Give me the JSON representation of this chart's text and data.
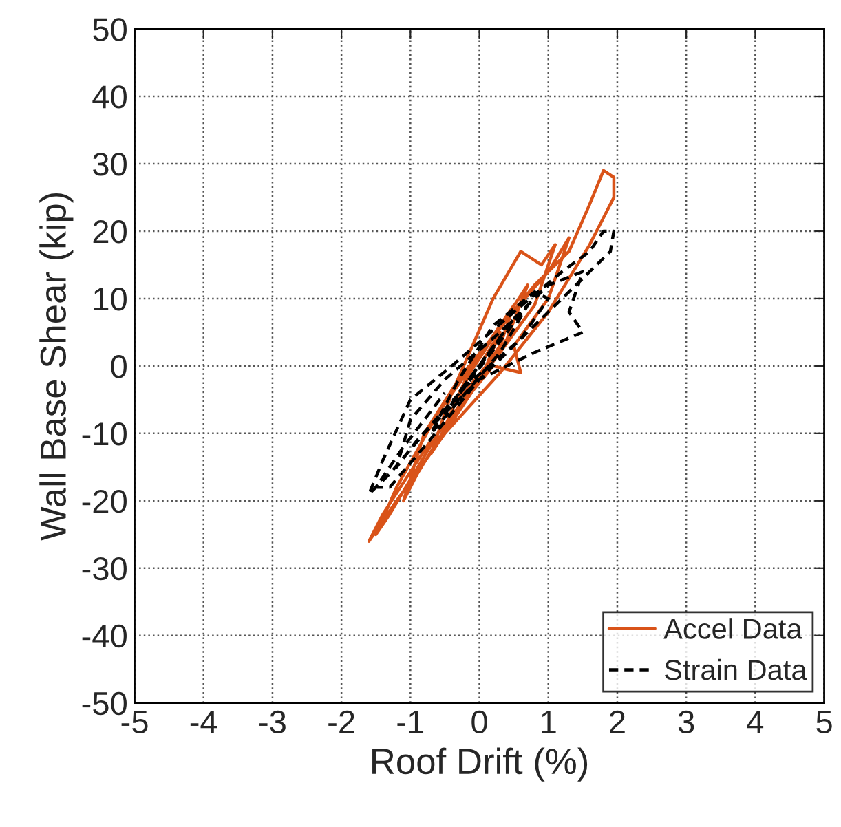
{
  "chart_data": {
    "type": "line",
    "xlabel": "Roof Drift (%)",
    "ylabel": "Wall Base Shear (kip)",
    "xlim": [
      -5,
      5
    ],
    "xticks": [
      -5,
      -4,
      -3,
      -2,
      -1,
      0,
      1,
      2,
      3,
      4,
      5
    ],
    "ylim": [
      -50,
      50
    ],
    "yticks": [
      -50,
      -40,
      -30,
      -20,
      -10,
      0,
      10,
      20,
      30,
      40,
      50
    ],
    "grid": true,
    "legend": "bottom right",
    "series": [
      {
        "name": "Accel Data",
        "color": "#d95319",
        "line_style": "solid",
        "x": [
          0,
          0.3,
          0.1,
          -0.3,
          -0.1,
          0.5,
          0.3,
          -0.5,
          -0.2,
          0.7,
          0.4,
          -0.7,
          -0.4,
          0.2,
          0.6,
          0.9,
          1.1,
          0.8,
          0.3,
          -0.3,
          -0.9,
          -1.1,
          -0.8,
          -0.3,
          0.4,
          1.0,
          1.3,
          1.0,
          0.5,
          0.6,
          0.2,
          -0.6,
          -1.3,
          -1.5,
          -1.2,
          -0.6,
          0.1,
          0.8,
          1.3,
          1.6,
          1.8,
          1.95,
          1.95,
          1.6,
          1.0,
          0.3,
          -0.5,
          -1.2,
          -1.6,
          -1.4,
          -0.7
        ],
        "values": [
          0,
          5,
          0,
          -5,
          0,
          9,
          3,
          -9,
          -2,
          12,
          4,
          -13,
          -4,
          10,
          17,
          15,
          18,
          9,
          2,
          -6,
          -16,
          -20,
          -10,
          -2,
          7,
          14,
          19,
          10,
          3,
          -1,
          0,
          -10,
          -22,
          -25,
          -18,
          -7,
          3,
          12,
          17,
          24,
          29,
          28,
          25,
          18,
          8,
          -1,
          -10,
          -20,
          -26,
          -22,
          -11
        ]
      },
      {
        "name": "Strain Data",
        "color": "#000000",
        "line_style": "dashed",
        "x": [
          0,
          0.3,
          -0.3,
          0.5,
          -0.5,
          0.7,
          0.3,
          -0.7,
          -0.3,
          0.2,
          0.8,
          1.0,
          0.6,
          -0.2,
          -0.9,
          -1.2,
          -1.0,
          -0.5,
          0.3,
          1.0,
          1.5,
          1.3,
          1.5,
          0.8,
          0,
          -0.8,
          -1.3,
          -1.6,
          -1.4,
          -1.0,
          -0.4,
          0.5,
          1.2,
          1.6,
          1.8,
          1.95,
          1.9,
          1.5,
          0.8,
          0,
          -0.8,
          -1.3,
          -1.5,
          -1.1,
          -0.5
        ],
        "values": [
          0,
          4,
          -4,
          7,
          -7,
          9,
          2,
          -10,
          -2,
          6,
          11,
          10,
          4,
          -3,
          -11,
          -15,
          -8,
          -2,
          5,
          12,
          14,
          8,
          5,
          2,
          -2,
          -10,
          -16,
          -19,
          -14,
          -5,
          0,
          8,
          14,
          17,
          20,
          20,
          17,
          13,
          6,
          -2,
          -12,
          -18,
          -18,
          -12,
          -4
        ]
      }
    ]
  }
}
